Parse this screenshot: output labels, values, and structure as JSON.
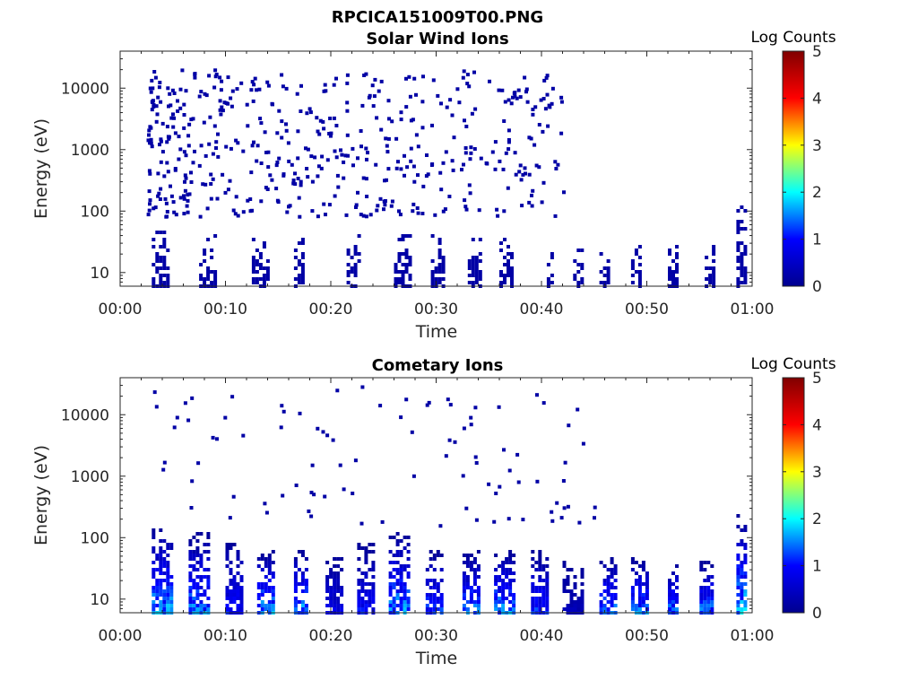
{
  "figure": {
    "title": "RPCICA151009T00.PNG"
  },
  "colormap": {
    "name": "jet",
    "stops": [
      "#00008f",
      "#0000ff",
      "#00ffff",
      "#ffff00",
      "#ff0000",
      "#800000"
    ]
  },
  "chart_data": [
    {
      "type": "heatmap",
      "title": "Solar Wind Ions",
      "xlabel": "Time",
      "ylabel": "Energy (eV)",
      "x_ticks": [
        "00:00",
        "00:10",
        "00:20",
        "00:30",
        "00:40",
        "00:50",
        "01:00"
      ],
      "xlim_minutes": [
        0,
        60
      ],
      "y_scale": "log",
      "y_ticks": [
        "10",
        "100",
        "1000",
        "10000"
      ],
      "ylim": [
        6,
        40000
      ],
      "colorbar": {
        "label": "Log Counts",
        "range": [
          0,
          5
        ],
        "ticks": [
          "0",
          "1",
          "2",
          "3",
          "4",
          "5"
        ]
      },
      "data_extent_minutes": [
        2.5,
        59
      ],
      "low_energy_bursts": [
        {
          "t": 3,
          "w": 1.6,
          "e_max": 50,
          "level": 0.2
        },
        {
          "t": 7.5,
          "w": 1.5,
          "e_max": 40,
          "level": 0.2
        },
        {
          "t": 12.5,
          "w": 1.5,
          "e_max": 40,
          "level": 0.2
        },
        {
          "t": 16.5,
          "w": 0.9,
          "e_max": 40,
          "level": 0.2
        },
        {
          "t": 21.5,
          "w": 1.3,
          "e_max": 40,
          "level": 0.2
        },
        {
          "t": 26,
          "w": 1.6,
          "e_max": 40,
          "level": 0.2
        },
        {
          "t": 29.5,
          "w": 1.2,
          "e_max": 40,
          "level": 0.2
        },
        {
          "t": 33,
          "w": 1.2,
          "e_max": 35,
          "level": 0.2
        },
        {
          "t": 36,
          "w": 1.2,
          "e_max": 35,
          "level": 0.2
        },
        {
          "t": 40.5,
          "w": 0.6,
          "e_max": 30,
          "level": 0.2
        },
        {
          "t": 43,
          "w": 0.8,
          "e_max": 30,
          "level": 0.2
        },
        {
          "t": 45.5,
          "w": 1.0,
          "e_max": 30,
          "level": 0.2
        },
        {
          "t": 48.5,
          "w": 1.0,
          "e_max": 30,
          "level": 0.2
        },
        {
          "t": 52,
          "w": 0.8,
          "e_max": 30,
          "level": 0.2
        },
        {
          "t": 55.5,
          "w": 0.8,
          "e_max": 30,
          "level": 0.2
        },
        {
          "t": 58.5,
          "w": 0.7,
          "e_max": 150,
          "level": 0.2
        }
      ],
      "sparse_scatter": {
        "t_range": [
          2.5,
          42
        ],
        "e_range": [
          80,
          20000
        ],
        "density": "decreasing-with-time",
        "level": 0.2
      }
    },
    {
      "type": "heatmap",
      "title": "Cometary Ions",
      "xlabel": "Time",
      "ylabel": "Energy (eV)",
      "x_ticks": [
        "00:00",
        "00:10",
        "00:20",
        "00:30",
        "00:40",
        "00:50",
        "01:00"
      ],
      "xlim_minutes": [
        0,
        60
      ],
      "y_scale": "log",
      "y_ticks": [
        "10",
        "100",
        "1000",
        "10000"
      ],
      "ylim": [
        6,
        40000
      ],
      "colorbar": {
        "label": "Log Counts",
        "range": [
          0,
          5
        ],
        "ticks": [
          "0",
          "1",
          "2",
          "3",
          "4",
          "5"
        ]
      },
      "data_extent_minutes": [
        2.5,
        59
      ],
      "periodic_bursts": [
        {
          "t": 3,
          "w": 2.0,
          "e_max": 150,
          "peak_level": 2.0
        },
        {
          "t": 6.5,
          "w": 2.0,
          "e_max": 120,
          "peak_level": 1.8
        },
        {
          "t": 10,
          "w": 1.5,
          "e_max": 100,
          "peak_level": 1.2
        },
        {
          "t": 13,
          "w": 1.5,
          "e_max": 60,
          "peak_level": 2.0
        },
        {
          "t": 16.5,
          "w": 1.3,
          "e_max": 60,
          "peak_level": 2.0
        },
        {
          "t": 19.5,
          "w": 1.5,
          "e_max": 50,
          "peak_level": 1.0
        },
        {
          "t": 22.5,
          "w": 1.5,
          "e_max": 80,
          "peak_level": 1.2
        },
        {
          "t": 25.5,
          "w": 2.0,
          "e_max": 120,
          "peak_level": 2.0
        },
        {
          "t": 29,
          "w": 1.5,
          "e_max": 60,
          "peak_level": 1.5
        },
        {
          "t": 32.5,
          "w": 1.5,
          "e_max": 60,
          "peak_level": 1.8
        },
        {
          "t": 35.5,
          "w": 1.8,
          "e_max": 60,
          "peak_level": 2.0
        },
        {
          "t": 39,
          "w": 1.5,
          "e_max": 60,
          "peak_level": 1.5
        },
        {
          "t": 42,
          "w": 2.0,
          "e_max": 50,
          "peak_level": 0.5
        },
        {
          "t": 45.5,
          "w": 1.5,
          "e_max": 50,
          "peak_level": 1.8
        },
        {
          "t": 48.5,
          "w": 1.5,
          "e_max": 50,
          "peak_level": 1.8
        },
        {
          "t": 52,
          "w": 1.0,
          "e_max": 40,
          "peak_level": 1.8
        },
        {
          "t": 55,
          "w": 1.3,
          "e_max": 40,
          "peak_level": 1.8
        },
        {
          "t": 58.5,
          "w": 0.9,
          "e_max": 250,
          "peak_level": 2.2
        }
      ],
      "sparse_scatter": {
        "t_range": [
          3,
          45
        ],
        "e_range": [
          150,
          30000
        ],
        "density": "low",
        "level": 0.2
      }
    }
  ]
}
